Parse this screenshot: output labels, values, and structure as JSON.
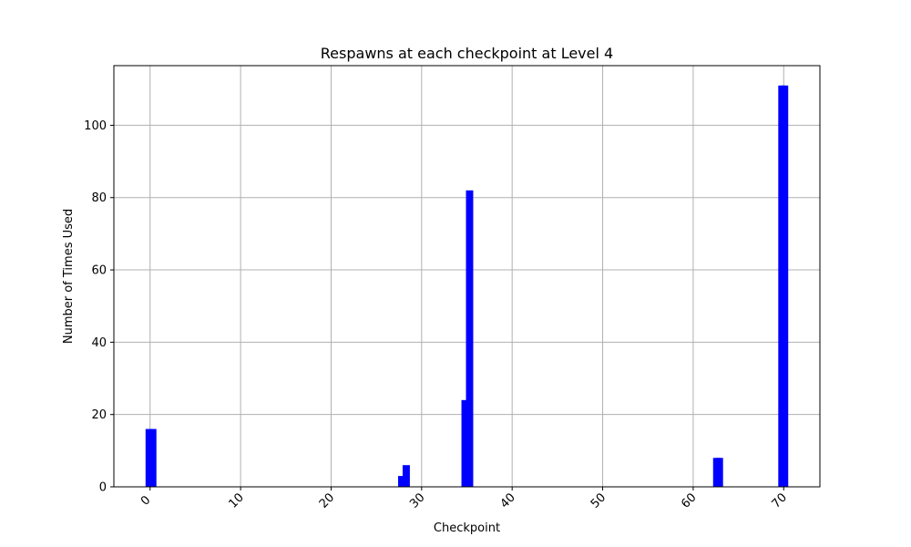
{
  "chart_data": {
    "type": "bar",
    "title": "Respawns at each checkpoint at Level 4",
    "xlabel": "Checkpoint",
    "ylabel": "Number of Times Used",
    "xlim": [
      -4,
      74
    ],
    "ylim": [
      0,
      116.5
    ],
    "xticks": [
      0,
      10,
      20,
      30,
      40,
      50,
      60,
      70
    ],
    "yticks": [
      0,
      20,
      40,
      60,
      80,
      100
    ],
    "grid": true,
    "bar_color": "#0000ff",
    "bar_width": 0.8,
    "x": [
      -0.1,
      0.3,
      27.8,
      28.3,
      34.8,
      35.3,
      62.6,
      62.9,
      69.8,
      70.1
    ],
    "values": [
      16,
      16,
      3,
      6,
      24,
      82,
      8,
      8,
      111,
      111
    ]
  }
}
